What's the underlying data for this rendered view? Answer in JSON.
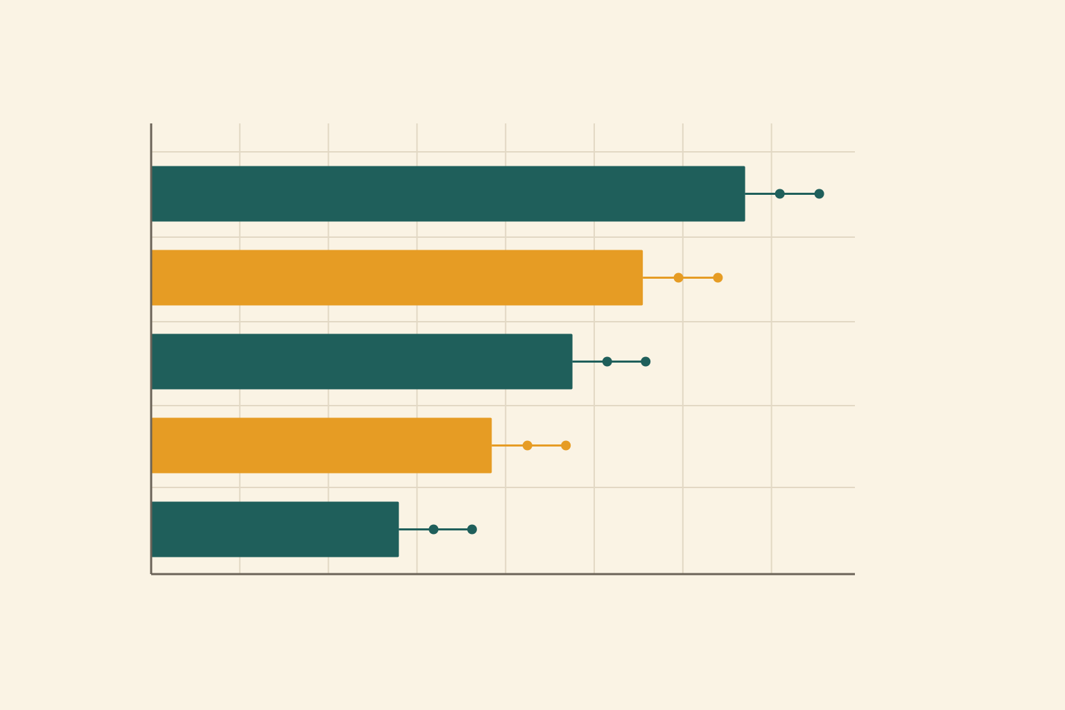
{
  "chart_data": {
    "type": "bar",
    "orientation": "horizontal",
    "title": "",
    "xlabel": "",
    "ylabel": "",
    "xlim": [
      0,
      7.5
    ],
    "grid": true,
    "legend": "none",
    "bars": [
      {
        "value": 6.33,
        "marker_a": 6.7,
        "marker_b": 7.12,
        "color": "#1f5f5b"
      },
      {
        "value": 5.24,
        "marker_a": 5.62,
        "marker_b": 6.04,
        "color": "#e69c24"
      },
      {
        "value": 4.49,
        "marker_a": 4.86,
        "marker_b": 5.27,
        "color": "#1f5f5b"
      },
      {
        "value": 3.63,
        "marker_a": 4.01,
        "marker_b": 4.42,
        "color": "#e69c24"
      },
      {
        "value": 2.64,
        "marker_a": 3.01,
        "marker_b": 3.42,
        "color": "#1f5f5b"
      }
    ],
    "colors": {
      "teal": "#1f5f5b",
      "orange": "#e69c24",
      "grid": "#e2d8c4",
      "axis": "#6b6358",
      "background": "#faf3e4"
    }
  }
}
